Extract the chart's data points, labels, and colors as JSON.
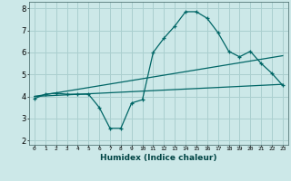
{
  "xlabel": "Humidex (Indice chaleur)",
  "bg_color": "#cce8e8",
  "grid_color": "#aacfcf",
  "line_color": "#006666",
  "xlim": [
    -0.5,
    23.5
  ],
  "ylim": [
    1.8,
    8.3
  ],
  "yticks": [
    2,
    3,
    4,
    5,
    6,
    7,
    8
  ],
  "xtick_labels": [
    "0",
    "1",
    "2",
    "3",
    "4",
    "5",
    "6",
    "7",
    "8",
    "9",
    "10",
    "11",
    "12",
    "13",
    "14",
    "15",
    "16",
    "17",
    "18",
    "19",
    "20",
    "21",
    "22",
    "23"
  ],
  "curve1_x": [
    0,
    1,
    2,
    3,
    4,
    5,
    6,
    7,
    8,
    9,
    10,
    11,
    12,
    13,
    14,
    15,
    16,
    17,
    18,
    19,
    20,
    21,
    22,
    23
  ],
  "curve1_y": [
    3.9,
    4.1,
    4.15,
    4.1,
    4.1,
    4.1,
    3.5,
    2.55,
    2.55,
    3.7,
    3.85,
    6.0,
    6.65,
    7.2,
    7.85,
    7.85,
    7.55,
    6.9,
    6.05,
    5.8,
    6.05,
    5.5,
    5.05,
    4.5
  ],
  "curve2_x": [
    0,
    23
  ],
  "curve2_y": [
    4.0,
    4.55
  ],
  "curve3_x": [
    0,
    23
  ],
  "curve3_y": [
    4.0,
    5.85
  ]
}
